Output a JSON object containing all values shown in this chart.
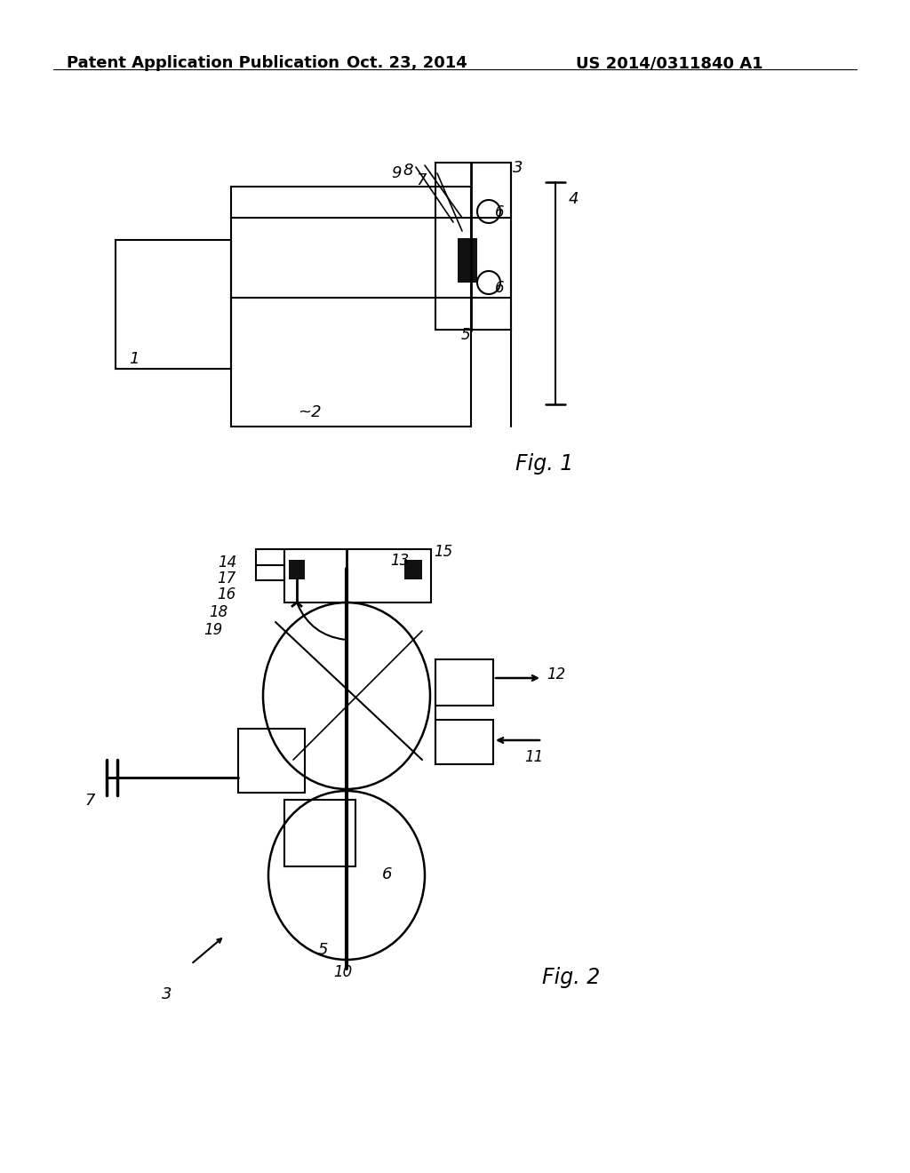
{
  "background_color": "#ffffff",
  "header": {
    "left": "Patent Application Publication",
    "center": "Oct. 23, 2014",
    "right": "US 2014/0311840 A1",
    "font_size": 13
  },
  "fig1_label": "Fig. 1",
  "fig2_label": "Fig. 2"
}
